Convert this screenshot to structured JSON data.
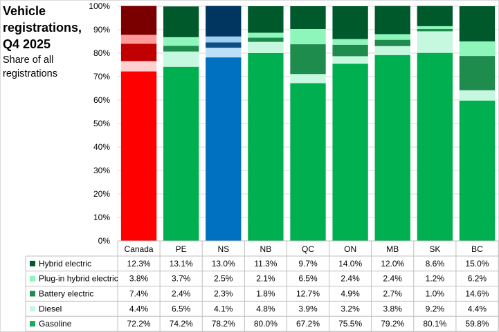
{
  "chart_data": {
    "type": "bar",
    "stacked": true,
    "title": "Vehicle registrations, Q4 2025",
    "title_lines": [
      "Vehicle",
      "registrations,",
      "Q4 2025"
    ],
    "ylabel": "Share of all registrations",
    "ylabel_lines": [
      "Share of all",
      "registrations"
    ],
    "ylim": [
      0,
      100
    ],
    "yticks": [
      "0%",
      "10%",
      "20%",
      "30%",
      "40%",
      "50%",
      "60%",
      "70%",
      "80%",
      "90%",
      "100%"
    ],
    "categories": [
      "Canada",
      "PE",
      "NS",
      "NB",
      "QC",
      "ON",
      "MB",
      "SK",
      "BC"
    ],
    "series": [
      {
        "name": "Gasoline",
        "values": [
          72.2,
          74.2,
          78.2,
          80.0,
          67.2,
          75.5,
          79.2,
          80.1,
          59.8
        ],
        "labels": [
          "72.2%",
          "74.2%",
          "78.2%",
          "80.0%",
          "67.2%",
          "75.5%",
          "79.2%",
          "80.1%",
          "59.8%"
        ]
      },
      {
        "name": "Diesel",
        "values": [
          4.4,
          6.5,
          4.1,
          4.8,
          3.9,
          3.2,
          3.8,
          9.2,
          4.4
        ],
        "labels": [
          "4.4%",
          "6.5%",
          "4.1%",
          "4.8%",
          "3.9%",
          "3.2%",
          "3.8%",
          "9.2%",
          "4.4%"
        ]
      },
      {
        "name": "Battery electric",
        "values": [
          7.4,
          2.4,
          2.3,
          1.8,
          12.7,
          4.9,
          2.7,
          1.0,
          14.6
        ],
        "labels": [
          "7.4%",
          "2.4%",
          "2.3%",
          "1.8%",
          "12.7%",
          "4.9%",
          "2.7%",
          "1.0%",
          "14.6%"
        ]
      },
      {
        "name": "Plug-in hybrid electric",
        "values": [
          3.8,
          3.7,
          2.5,
          2.1,
          6.5,
          2.4,
          2.4,
          1.2,
          6.2
        ],
        "labels": [
          "3.8%",
          "3.7%",
          "2.5%",
          "2.1%",
          "6.5%",
          "2.4%",
          "2.4%",
          "1.2%",
          "6.2%"
        ]
      },
      {
        "name": "Hybrid electric",
        "values": [
          12.3,
          13.1,
          13.0,
          11.3,
          9.7,
          14.0,
          12.0,
          8.6,
          15.0
        ],
        "labels": [
          "12.3%",
          "13.1%",
          "13.0%",
          "11.3%",
          "9.7%",
          "14.0%",
          "12.0%",
          "8.6%",
          "15.0%"
        ]
      }
    ],
    "table_row_order": [
      "Hybrid electric",
      "Plug-in hybrid electric",
      "Battery electric",
      "Diesel",
      "Gasoline"
    ],
    "colors": {
      "default": [
        "#00b050",
        "#c6f7df",
        "#1e8c4c",
        "#8ef5bb",
        "#00592b"
      ],
      "Canada": [
        "#ff0000",
        "#ffd0d0",
        "#c00000",
        "#ff9a9a",
        "#7a0000"
      ],
      "NS": [
        "#0070c0",
        "#bde0f8",
        "#0b4f86",
        "#9fd0f2",
        "#003660"
      ]
    },
    "legend_colors": [
      "#00592b",
      "#8ef5bb",
      "#1e8c4c",
      "#c6f7df",
      "#1daa5c"
    ],
    "gridlines": true
  }
}
